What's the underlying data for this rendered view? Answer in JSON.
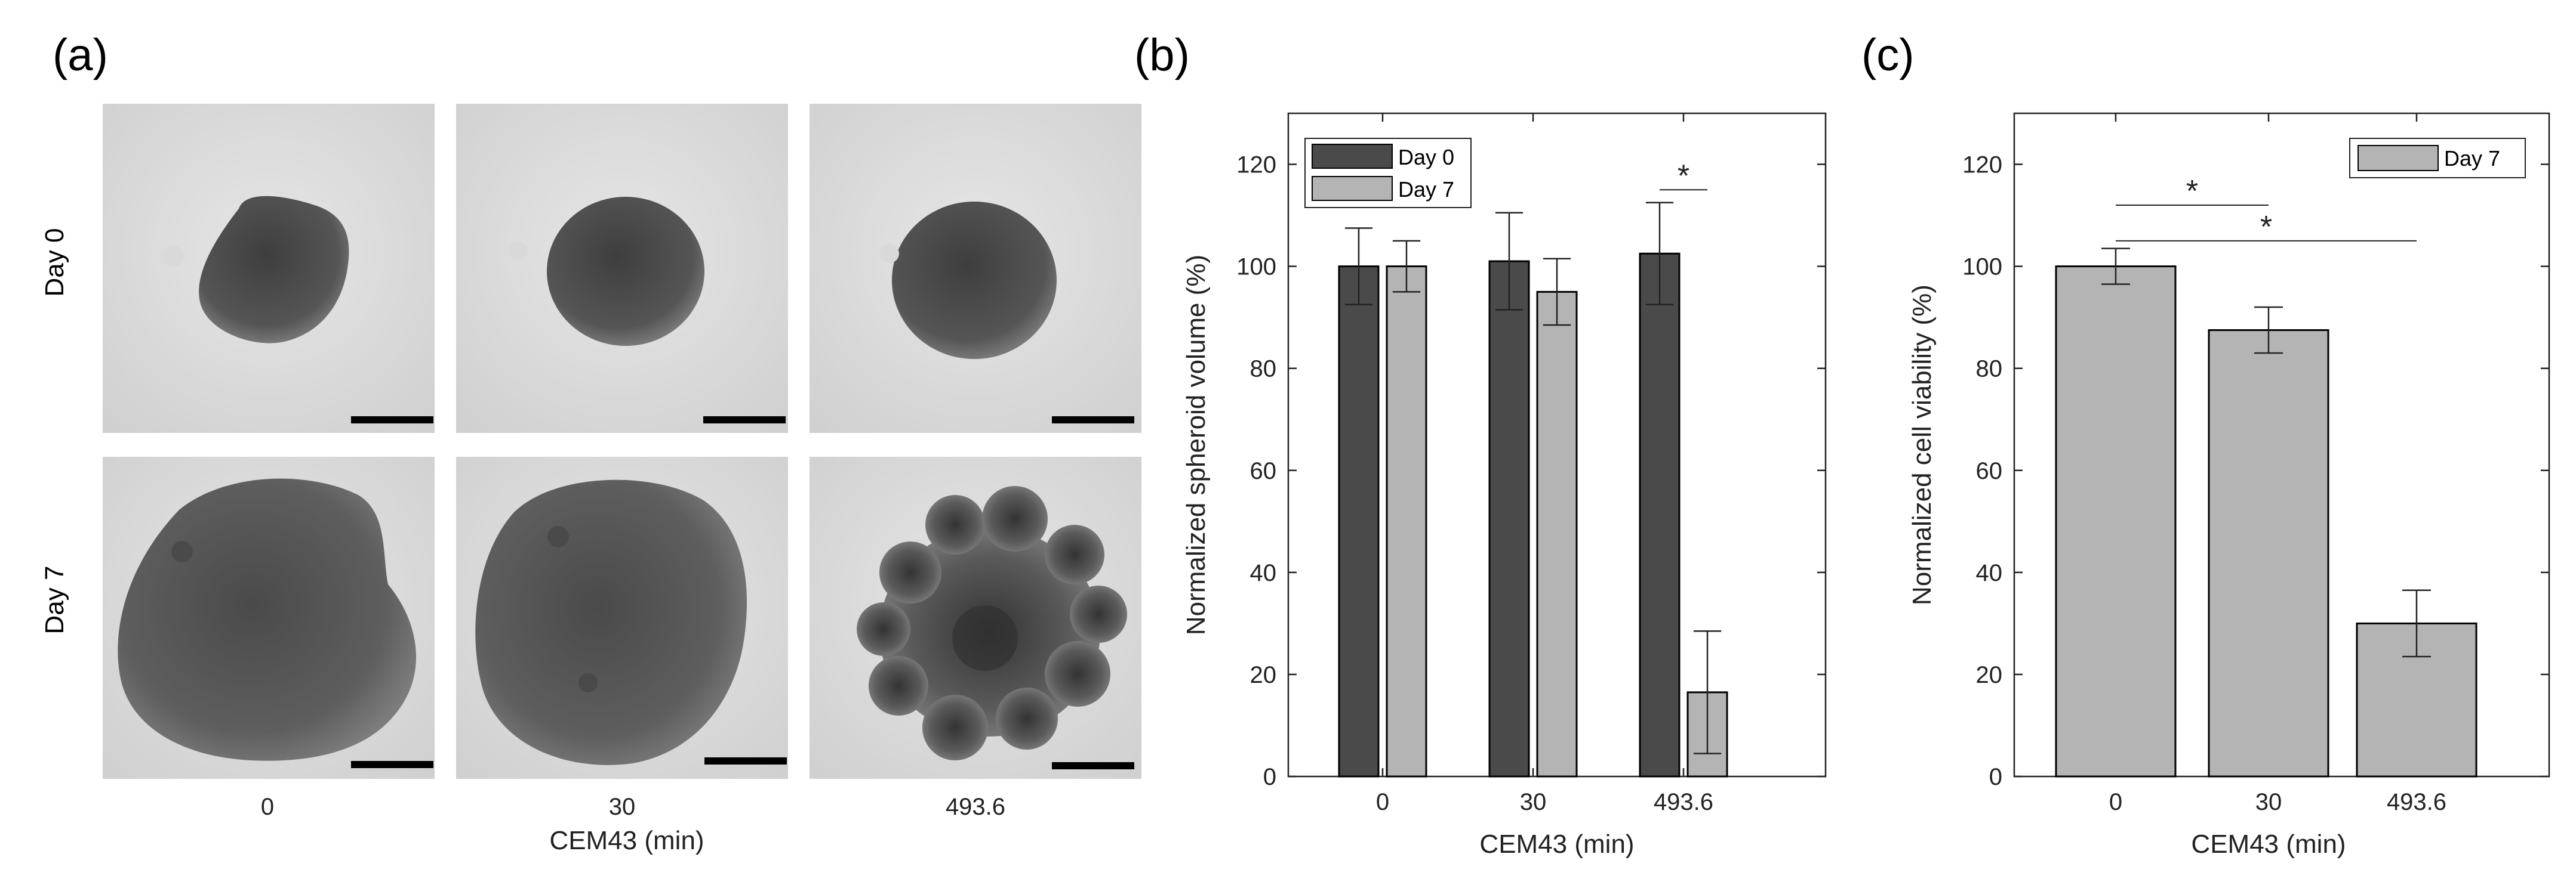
{
  "panel_a": {
    "label": "(a)",
    "rows": [
      "Day 0",
      "Day 7"
    ],
    "columns": [
      "0",
      "30",
      "493.6"
    ],
    "xlabel": "CEM43 (min)"
  },
  "chart_data": [
    {
      "panel": "(b)",
      "type": "bar",
      "categories": [
        "0",
        "30",
        "493.6"
      ],
      "series": [
        {
          "name": "Day 0",
          "values": [
            100,
            101,
            102.5
          ],
          "errors": [
            7.5,
            9.5,
            10
          ],
          "color": "#4a4a4a"
        },
        {
          "name": "Day 7",
          "values": [
            100,
            95,
            16.5
          ],
          "errors": [
            5,
            6.5,
            12
          ],
          "color": "#b4b4b4"
        }
      ],
      "xlabel": "CEM43 (min)",
      "ylabel": "Normalized spheroid volume (%)",
      "ylim": [
        0,
        130
      ],
      "yticks": [
        0,
        20,
        40,
        60,
        80,
        100,
        120
      ],
      "legend_position": "top-left",
      "grid": false,
      "annotations": [
        {
          "text": "*",
          "between": [
            "Day 0 @ 493.6",
            "Day 7 @ 493.6"
          ],
          "y": 115
        }
      ]
    },
    {
      "panel": "(c)",
      "type": "bar",
      "categories": [
        "0",
        "30",
        "493.6"
      ],
      "series": [
        {
          "name": "Day 7",
          "values": [
            100,
            87.5,
            30
          ],
          "errors": [
            3.5,
            4.5,
            6.5
          ],
          "color": "#b4b4b4"
        }
      ],
      "xlabel": "CEM43 (min)",
      "ylabel": "Normalized cell viability (%)",
      "ylim": [
        0,
        130
      ],
      "yticks": [
        0,
        20,
        40,
        60,
        80,
        100,
        120
      ],
      "legend_position": "top-right",
      "grid": false,
      "annotations": [
        {
          "text": "*",
          "between": [
            "0",
            "30"
          ],
          "y": 112
        },
        {
          "text": "*",
          "between": [
            "0",
            "493.6"
          ],
          "y": 105
        }
      ]
    }
  ]
}
